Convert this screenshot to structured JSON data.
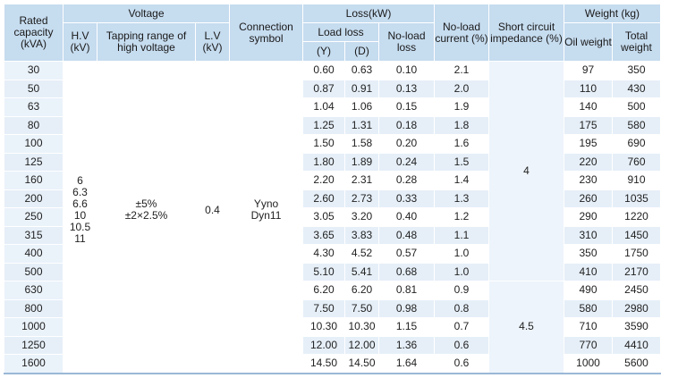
{
  "table": {
    "header": {
      "rated_capacity": "Rated capacity (kVA)",
      "voltage": "Voltage",
      "hv": "H.V (kV)",
      "tapping": "Tapping range of high voltage",
      "lv": "L.V (kV)",
      "connection": "Connection symbol",
      "loss": "Loss(kW)",
      "load_loss": "Load loss",
      "load_loss_y": "(Y)",
      "load_loss_d": "(D)",
      "no_load_loss": "No-load loss",
      "no_load_current": "No-load current (%)",
      "short_circuit": "Short circuit impedance (%)",
      "weight": "Weight (kg)",
      "oil_weight": "Oil weight",
      "total_weight": "Total weight"
    },
    "hv_values": [
      "6",
      "6.3",
      "6.6",
      "10",
      "10.5",
      "11"
    ],
    "tapping_values": [
      "±5%",
      "±2×2.5%"
    ],
    "lv_value": "0.4",
    "connection_values": [
      "Yyno",
      "Dyn11"
    ],
    "impedance_group_1": "4",
    "impedance_group_2": "4.5",
    "rows": [
      {
        "capacity": "30",
        "y": "0.60",
        "d": "0.63",
        "noload": "0.10",
        "current": "2.1",
        "oil": "97",
        "total": "350"
      },
      {
        "capacity": "50",
        "y": "0.87",
        "d": "0.91",
        "noload": "0.13",
        "current": "2.0",
        "oil": "110",
        "total": "430"
      },
      {
        "capacity": "63",
        "y": "1.04",
        "d": "1.06",
        "noload": "0.15",
        "current": "1.9",
        "oil": "140",
        "total": "500"
      },
      {
        "capacity": "80",
        "y": "1.25",
        "d": "1.31",
        "noload": "0.18",
        "current": "1.8",
        "oil": "175",
        "total": "580"
      },
      {
        "capacity": "100",
        "y": "1.50",
        "d": "1.58",
        "noload": "0.20",
        "current": "1.6",
        "oil": "195",
        "total": "690"
      },
      {
        "capacity": "125",
        "y": "1.80",
        "d": "1.89",
        "noload": "0.24",
        "current": "1.5",
        "oil": "220",
        "total": "760"
      },
      {
        "capacity": "160",
        "y": "2.20",
        "d": "2.31",
        "noload": "0.28",
        "current": "1.4",
        "oil": "230",
        "total": "910"
      },
      {
        "capacity": "200",
        "y": "2.60",
        "d": "2.73",
        "noload": "0.33",
        "current": "1.3",
        "oil": "260",
        "total": "1035"
      },
      {
        "capacity": "250",
        "y": "3.05",
        "d": "3.20",
        "noload": "0.40",
        "current": "1.2",
        "oil": "290",
        "total": "1220"
      },
      {
        "capacity": "315",
        "y": "3.65",
        "d": "3.83",
        "noload": "0.48",
        "current": "1.1",
        "oil": "310",
        "total": "1450"
      },
      {
        "capacity": "400",
        "y": "4.30",
        "d": "4.52",
        "noload": "0.57",
        "current": "1.0",
        "oil": "350",
        "total": "1750"
      },
      {
        "capacity": "500",
        "y": "5.10",
        "d": "5.41",
        "noload": "0.68",
        "current": "1.0",
        "oil": "410",
        "total": "2170"
      },
      {
        "capacity": "630",
        "y": "6.20",
        "d": "6.20",
        "noload": "0.81",
        "current": "0.9",
        "oil": "490",
        "total": "2450"
      },
      {
        "capacity": "800",
        "y": "7.50",
        "d": "7.50",
        "noload": "0.98",
        "current": "0.8",
        "oil": "580",
        "total": "2980"
      },
      {
        "capacity": "1000",
        "y": "10.30",
        "d": "10.30",
        "noload": "1.15",
        "current": "0.7",
        "oil": "710",
        "total": "3590"
      },
      {
        "capacity": "1250",
        "y": "12.00",
        "d": "12.00",
        "noload": "1.36",
        "current": "0.6",
        "oil": "770",
        "total": "4410"
      },
      {
        "capacity": "1600",
        "y": "14.50",
        "d": "14.50",
        "noload": "1.64",
        "current": "0.6",
        "oil": "1000",
        "total": "5600"
      }
    ]
  }
}
